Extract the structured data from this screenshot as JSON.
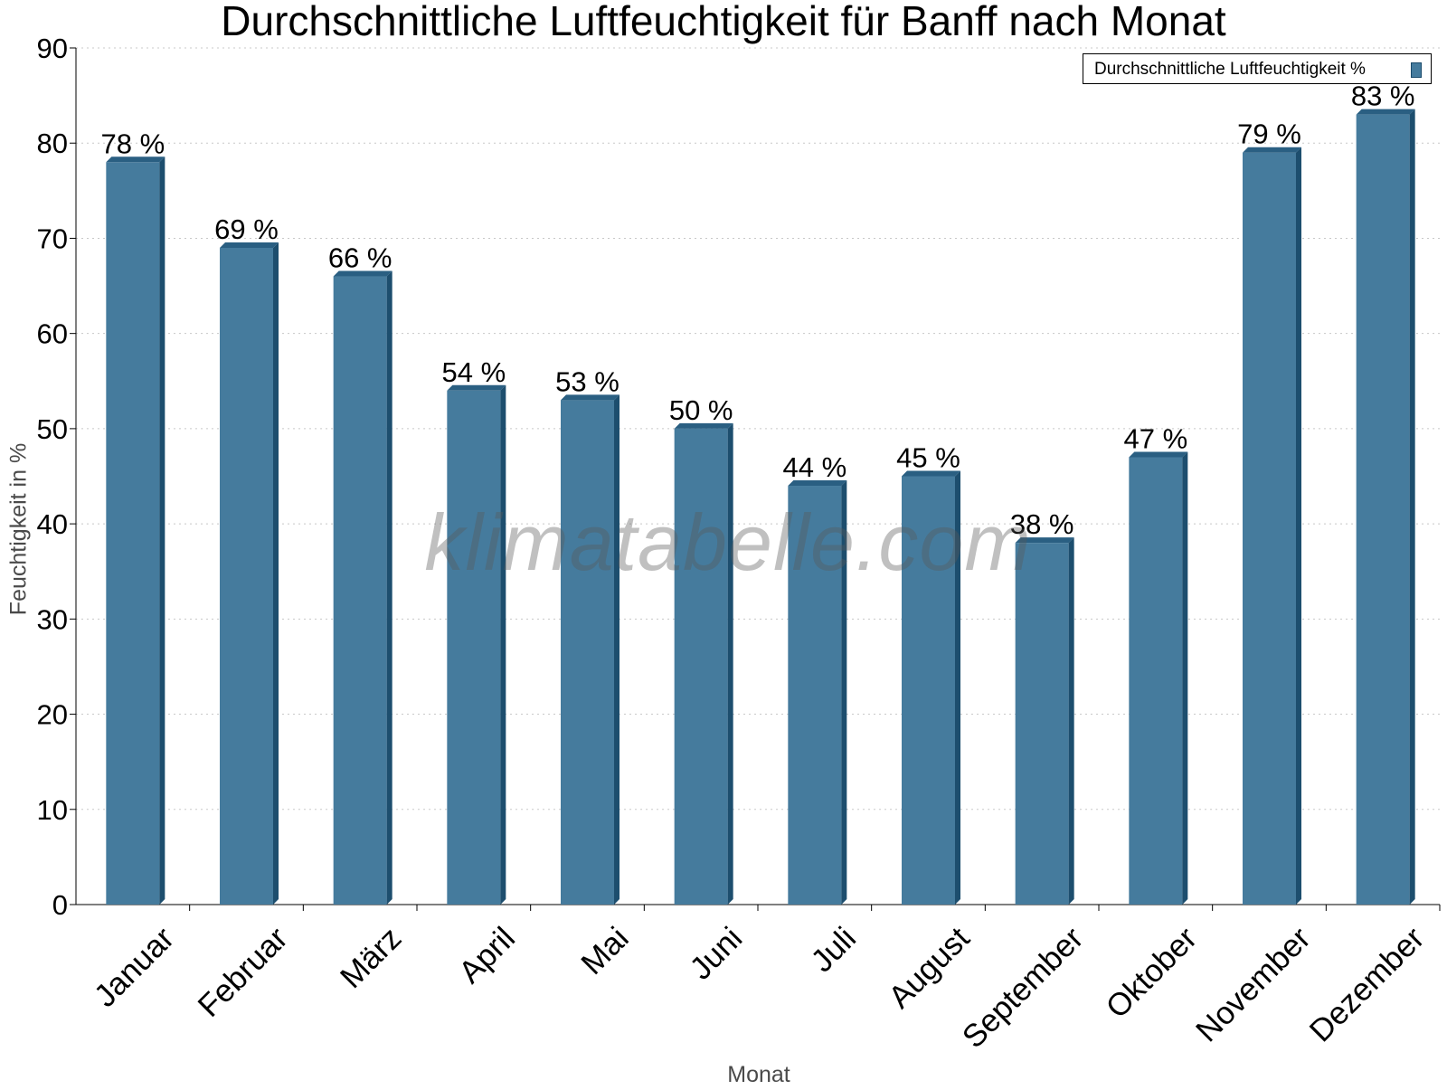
{
  "colors": {
    "bar_front": "#457b9d",
    "bar_side": "#1d4e6e",
    "bar_top": "#2a5f82",
    "grid": "#c8c8c8",
    "axis": "#000000"
  },
  "watermark": "klimatabelle.com",
  "chart_data": {
    "type": "bar",
    "title": "Durchschnittliche Luftfeuchtigkeit für Banff nach Monat",
    "xlabel": "Monat",
    "ylabel": "Feuchtigkeit in %",
    "categories": [
      "Januar",
      "Februar",
      "März",
      "April",
      "Mai",
      "Juni",
      "Juli",
      "August",
      "September",
      "Oktober",
      "November",
      "Dezember"
    ],
    "series": [
      {
        "name": "Durchschnittliche Luftfeuchtigkeit %",
        "values": [
          78,
          69,
          66,
          54,
          53,
          50,
          44,
          45,
          38,
          47,
          79,
          83
        ],
        "labels": [
          "78 %",
          "69 %",
          "66 %",
          "54 %",
          "53 %",
          "50 %",
          "44 %",
          "45 %",
          "38 %",
          "47 %",
          "79 %",
          "83 %"
        ]
      }
    ],
    "ylim": [
      0,
      90
    ],
    "yticks": [
      0,
      10,
      20,
      30,
      40,
      50,
      60,
      70,
      80,
      90
    ],
    "grid": true,
    "legend_position": "top-right"
  }
}
